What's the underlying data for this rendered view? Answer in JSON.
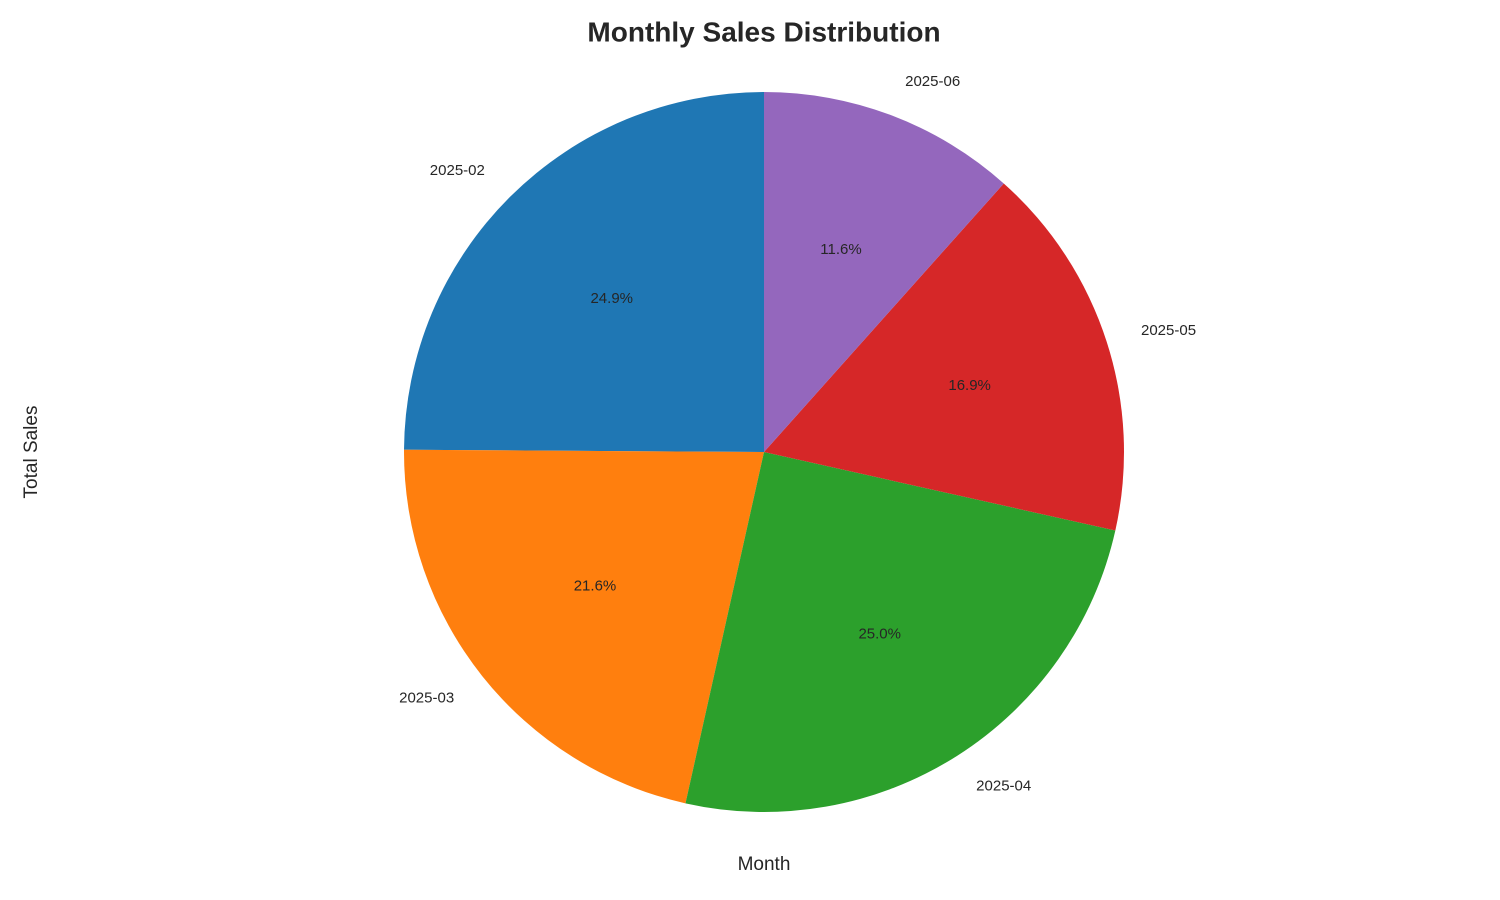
{
  "chart_data": {
    "type": "pie",
    "title": "Monthly Sales Distribution",
    "xlabel": "Month",
    "ylabel": "Total Sales",
    "categories": [
      "2025-02",
      "2025-03",
      "2025-04",
      "2025-05",
      "2025-06"
    ],
    "values": [
      24.9,
      21.6,
      25.0,
      16.9,
      11.6
    ],
    "value_labels": [
      "24.9%",
      "21.6%",
      "25.0%",
      "16.9%",
      "11.6%"
    ],
    "colors": [
      "#1f77b4",
      "#ff7f0e",
      "#2ca02c",
      "#d62728",
      "#9467bd"
    ],
    "start_angle": 90
  }
}
